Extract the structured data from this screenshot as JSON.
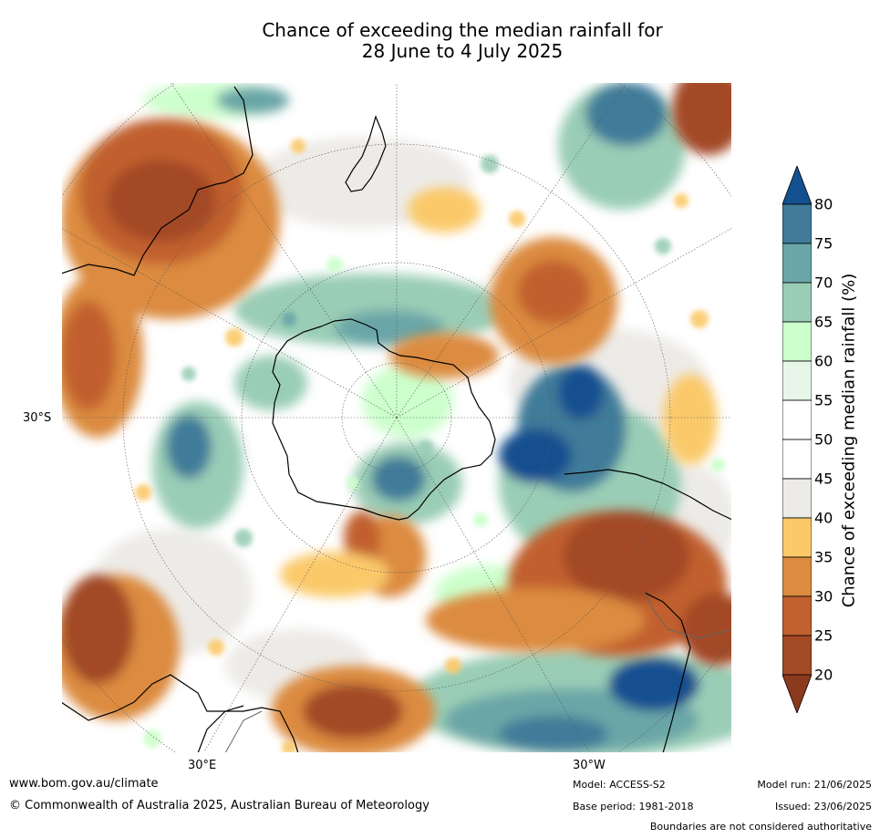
{
  "title_line1": "Chance of exceeding the median rainfall for",
  "title_line2": "28 June to 4 July 2025",
  "map": {
    "lat_label": "30°S",
    "lon_label_east": "30°E",
    "lon_label_west": "30°W"
  },
  "colorbar": {
    "title": "Chance of exceeding median rainfall (%)",
    "ticks": [
      "20",
      "25",
      "30",
      "35",
      "40",
      "45",
      "50",
      "55",
      "60",
      "65",
      "70",
      "75",
      "80"
    ],
    "colors": [
      "#a34a26",
      "#c1612f",
      "#dc8b40",
      "#fbc96a",
      "#edebe8",
      "#ffffff",
      "#ffffff",
      "#e8f6ea",
      "#ccffcc",
      "#9acdb6",
      "#6aa6a7",
      "#417b99",
      "#135090"
    ],
    "extend_low_color": "#8b3a1d",
    "extend_high_color": "#135090"
  },
  "footer": {
    "url": "www.bom.gov.au/climate",
    "copyright": "© Commonwealth of Australia 2025, Australian Bureau of Meteorology",
    "model": "Model: ACCESS-S2",
    "base_period": "Base period: 1981-2018",
    "model_run": "Model run: 21/06/2025",
    "issued": "Issued: 23/06/2025",
    "disclaimer": "Boundaries are not considered authoritative"
  }
}
